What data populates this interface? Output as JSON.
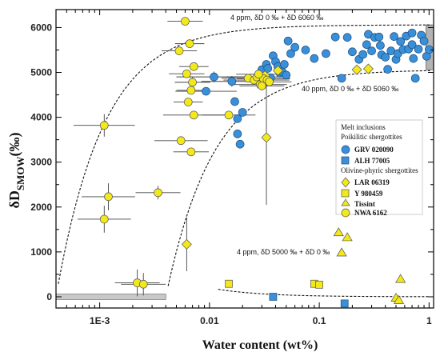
{
  "chart_data": {
    "type": "scatter",
    "xscale": "log",
    "xlim": [
      0.0004,
      1.1
    ],
    "ylim": [
      -250,
      6400
    ],
    "xlabel": "Water content (wt%)",
    "ylabel_main": "δD",
    "ylabel_sub": "SMOW",
    "ylabel_unit": "(‰)",
    "x_ticks": [
      {
        "value": 0.001,
        "label": "1E-3"
      },
      {
        "value": 0.01,
        "label": "0.01"
      },
      {
        "value": 0.1,
        "label": "0.1"
      },
      {
        "value": 1,
        "label": "1"
      }
    ],
    "y_ticks": [
      0,
      1000,
      2000,
      3000,
      4000,
      5000,
      6000
    ],
    "annotations": [
      {
        "text": "4 ppm, δD 0 ‰ + δD 6060 ‰",
        "x": 0.0062,
        "y": 6250
      },
      {
        "text": "40 ppm, δD 0 ‰ + δD 5060 ‰",
        "x": 0.07,
        "y": 4560
      },
      {
        "text": "4 ppm, δD 5000 ‰ + δD 0 ‰",
        "x": 0.013,
        "y": 1900
      }
    ],
    "legend": {
      "title": "Melt inclusions",
      "groups": [
        {
          "title": "Poikilitic shergottites",
          "entries": [
            {
              "name": "GRV 020090",
              "marker": "circle",
              "color": "#3a8fd9"
            },
            {
              "name": "ALH 77005",
              "marker": "square",
              "color": "#3a8fd9"
            }
          ]
        },
        {
          "title": "Olivine-phyric shergottites",
          "entries": [
            {
              "name": "LAR 06319",
              "marker": "diamond",
              "color": "#f2e81c"
            },
            {
              "name": "Y 980459",
              "marker": "square",
              "color": "#f2e81c"
            },
            {
              "name": "Tissint",
              "marker": "triangle",
              "color": "#f2e81c"
            },
            {
              "name": "NWA 6162",
              "marker": "circle",
              "color": "#f2e81c"
            }
          ]
        }
      ]
    },
    "curves": [
      {
        "name": "",
        "type": "hyperbola",
        "x0": 0.0004,
        "y0": 0,
        "end": 6060,
        "xmin": 0.00042,
        "xmax": 1.05
      },
      {
        "name": "",
        "type": "hyperbola",
        "x0": 0.004,
        "y0": 0,
        "end": 5060,
        "xmin": 0.0042,
        "xmax": 1.05
      },
      {
        "name": "",
        "type": "hyperbola",
        "x0": 0.0004,
        "y0": 5000,
        "end": 0,
        "xmin": 0.012,
        "xmax": 1.0
      }
    ],
    "series": [
      {
        "name": "GRV 020090",
        "marker": "circle",
        "color": "#3a8fd9",
        "points": [
          [
            0.011,
            4900,
            0.4,
            120
          ],
          [
            0.0093,
            4580,
            0.3,
            0
          ],
          [
            0.016,
            4800,
            0.3,
            120
          ],
          [
            0.017,
            4350,
            0,
            0
          ],
          [
            0.018,
            3970,
            0,
            0
          ],
          [
            0.018,
            3630,
            0,
            0
          ],
          [
            0.019,
            3400,
            0,
            0
          ],
          [
            0.02,
            4110,
            0,
            0
          ],
          [
            0.028,
            4890,
            0,
            0
          ],
          [
            0.03,
            5060,
            0,
            0
          ],
          [
            0.032,
            4790,
            0,
            0
          ],
          [
            0.033,
            5180,
            0,
            0
          ],
          [
            0.034,
            5090,
            0,
            0
          ],
          [
            0.036,
            4880,
            0,
            0
          ],
          [
            0.038,
            5370,
            0,
            0
          ],
          [
            0.04,
            5240,
            0,
            0
          ],
          [
            0.042,
            5130,
            0,
            0
          ],
          [
            0.044,
            4980,
            0,
            0
          ],
          [
            0.046,
            5010,
            0,
            0
          ],
          [
            0.048,
            5180,
            0,
            0
          ],
          [
            0.05,
            4940,
            0,
            0
          ],
          [
            0.055,
            5420,
            0,
            0
          ],
          [
            0.052,
            5700,
            0,
            0
          ],
          [
            0.06,
            5560,
            0,
            0
          ],
          [
            0.075,
            5500,
            0,
            0
          ],
          [
            0.09,
            5310,
            0,
            0
          ],
          [
            0.115,
            5420,
            0,
            0
          ],
          [
            0.14,
            5790,
            0,
            0
          ],
          [
            0.16,
            4870,
            0,
            0
          ],
          [
            0.18,
            5780,
            0,
            0
          ],
          [
            0.2,
            5460,
            0,
            0
          ],
          [
            0.23,
            5290,
            0,
            0
          ],
          [
            0.25,
            5400,
            0,
            0
          ],
          [
            0.28,
            5850,
            0,
            0
          ],
          [
            0.3,
            5480,
            0,
            0
          ],
          [
            0.32,
            5780,
            0,
            0
          ],
          [
            0.35,
            5790,
            0,
            0
          ],
          [
            0.37,
            5390,
            0,
            0
          ],
          [
            0.4,
            5340,
            0,
            0
          ],
          [
            0.42,
            5070,
            0,
            0
          ],
          [
            0.45,
            5480,
            0,
            0
          ],
          [
            0.48,
            5800,
            0,
            0
          ],
          [
            0.5,
            5290,
            0,
            0
          ],
          [
            0.52,
            5420,
            0,
            0
          ],
          [
            0.55,
            5690,
            0,
            0
          ],
          [
            0.58,
            5510,
            0,
            0
          ],
          [
            0.62,
            5810,
            0,
            0
          ],
          [
            0.65,
            5520,
            0,
            0
          ],
          [
            0.7,
            5620,
            0,
            0
          ],
          [
            0.72,
            5310,
            0,
            0
          ],
          [
            0.75,
            4870,
            0,
            0
          ],
          [
            0.8,
            5520,
            0,
            0
          ],
          [
            0.85,
            5830,
            0,
            0
          ],
          [
            0.9,
            5700,
            0,
            0
          ],
          [
            0.95,
            5360,
            0,
            0
          ],
          [
            1.0,
            5510,
            0,
            0
          ],
          [
            0.7,
            5880,
            0,
            0
          ],
          [
            0.36,
            5600,
            0,
            0
          ],
          [
            0.27,
            5620,
            0,
            0
          ]
        ]
      },
      {
        "name": "ALH 77005",
        "marker": "square",
        "color": "#3a8fd9",
        "points": [
          [
            0.038,
            0,
            0,
            0
          ],
          [
            0.17,
            -150,
            0,
            0
          ]
        ]
      },
      {
        "name": "LAR 06319",
        "marker": "diamond",
        "color": "#f2e81c",
        "points": [
          [
            0.0062,
            1170,
            0,
            600
          ],
          [
            0.033,
            3550,
            0,
            1500
          ],
          [
            0.042,
            5040,
            0,
            0
          ],
          [
            0.032,
            4930,
            0,
            0
          ],
          [
            0.22,
            5060,
            0,
            0
          ],
          [
            0.28,
            5080,
            0,
            0
          ]
        ]
      },
      {
        "name": "Y 980459",
        "marker": "square",
        "color": "#f2e81c",
        "points": [
          [
            0.015,
            290,
            0,
            0
          ],
          [
            0.09,
            290,
            0,
            0
          ],
          [
            0.1,
            270,
            0,
            0
          ]
        ]
      },
      {
        "name": "Tissint",
        "marker": "triangle",
        "color": "#f2e81c",
        "points": [
          [
            0.15,
            1430,
            0,
            0
          ],
          [
            0.18,
            1320,
            0,
            0
          ],
          [
            0.16,
            980,
            0,
            0
          ],
          [
            0.55,
            390,
            0,
            0
          ],
          [
            0.5,
            -30,
            0,
            0
          ],
          [
            0.53,
            -80,
            0,
            0
          ]
        ]
      },
      {
        "name": "NWA 6162",
        "marker": "circle",
        "color": "#f2e81c",
        "points": [
          [
            0.006,
            6140,
            0.15,
            0
          ],
          [
            0.0066,
            5640,
            0.12,
            0
          ],
          [
            0.0053,
            5480,
            0.15,
            0
          ],
          [
            0.0072,
            5130,
            0.12,
            0
          ],
          [
            0.0062,
            4970,
            0.15,
            0
          ],
          [
            0.007,
            4780,
            0.15,
            120
          ],
          [
            0.0068,
            4600,
            0.12,
            0
          ],
          [
            0.0064,
            4340,
            0.12,
            0
          ],
          [
            0.0072,
            4050,
            0.3,
            0
          ],
          [
            0.0055,
            3480,
            0.25,
            0
          ],
          [
            0.0068,
            3230,
            0.15,
            0
          ],
          [
            0.0011,
            3820,
            0.3,
            250
          ],
          [
            0.0012,
            2230,
            0.25,
            300
          ],
          [
            0.0011,
            1730,
            0.25,
            300
          ],
          [
            0.0034,
            2320,
            0.2,
            150
          ],
          [
            0.0022,
            310,
            0.2,
            300
          ],
          [
            0.0025,
            280,
            0.2,
            250
          ],
          [
            0.0225,
            4870,
            0.25,
            0
          ],
          [
            0.0255,
            4830,
            0.3,
            0
          ],
          [
            0.027,
            4900,
            0.3,
            0
          ],
          [
            0.029,
            4730,
            0.25,
            0
          ],
          [
            0.031,
            4860,
            0.25,
            0
          ],
          [
            0.0335,
            4830,
            0.2,
            0
          ],
          [
            0.015,
            4050,
            0.25,
            0
          ],
          [
            0.028,
            4960,
            0.2,
            0
          ],
          [
            0.035,
            4790,
            0.2,
            0
          ],
          [
            0.03,
            4700,
            0.2,
            0
          ]
        ]
      }
    ]
  }
}
